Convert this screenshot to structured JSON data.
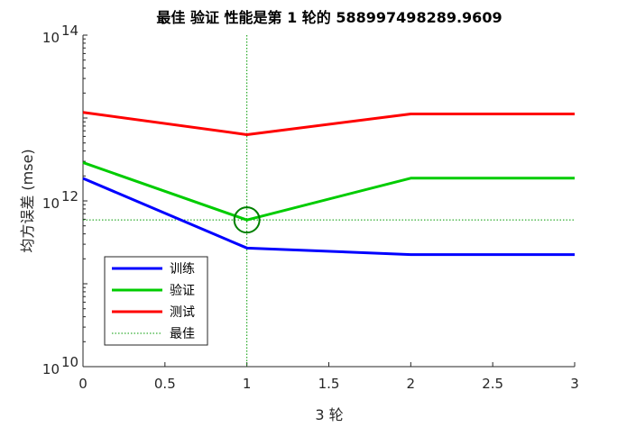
{
  "chart_data": {
    "type": "line",
    "title": "最佳 验证 性能是第 1 轮的 588997498289.9609",
    "xlabel": "3 轮",
    "ylabel": "均方误差 (mse)",
    "xlim": [
      0,
      3
    ],
    "ylim": [
      10000000000,
      100000000000000
    ],
    "yscale": "log",
    "x_ticks": [
      "0",
      "0.5",
      "1",
      "1.5",
      "2",
      "2.5",
      "3"
    ],
    "y_ticks": [
      {
        "base": "10",
        "exp": "10"
      },
      {
        "base": "10",
        "exp": "12"
      },
      {
        "base": "10",
        "exp": "14"
      }
    ],
    "x": [
      0,
      1,
      2,
      3
    ],
    "series": [
      {
        "name": "训练",
        "color": "#0000ff",
        "values": [
          1870000000000,
          270000000000,
          225000000000,
          225000000000
        ]
      },
      {
        "name": "验证",
        "color": "#00cc00",
        "values": [
          2900000000000,
          588997498289.9609,
          1880000000000,
          1880000000000
        ]
      },
      {
        "name": "测试",
        "color": "#ff0000",
        "values": [
          11700000000000,
          6300000000000,
          11200000000000,
          11200000000000
        ]
      }
    ],
    "best": {
      "name": "最佳",
      "epoch": 1,
      "value": 588997498289.9609,
      "color": "#009900",
      "marker_color": "#008000"
    },
    "legend_position": "lower-left",
    "grid": false
  }
}
